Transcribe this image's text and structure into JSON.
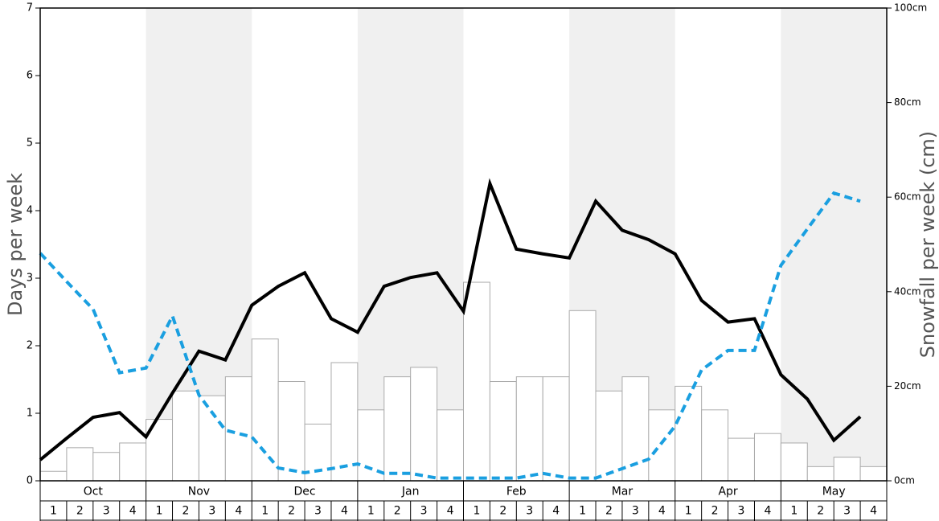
{
  "chart_data": {
    "type": "bar-line",
    "ylabel": "Days per week",
    "y2label": "Snowfall per week (cm)",
    "months": [
      "Oct",
      "Nov",
      "Dec",
      "Jan",
      "Feb",
      "Mar",
      "Apr",
      "May"
    ],
    "shaded_months": [
      1,
      3,
      5,
      7
    ],
    "categories": [
      "1",
      "2",
      "3",
      "4",
      "1",
      "2",
      "3",
      "4",
      "1",
      "2",
      "3",
      "4",
      "1",
      "2",
      "3",
      "4",
      "1",
      "2",
      "3",
      "4",
      "1",
      "2",
      "3",
      "4",
      "1",
      "2",
      "3",
      "4",
      "1",
      "2",
      "3",
      "4"
    ],
    "ylim": [
      0,
      7
    ],
    "yticks": [
      0,
      1,
      2,
      3,
      4,
      5,
      6,
      7
    ],
    "y2lim": [
      0,
      100
    ],
    "y2ticks": [
      {
        "value": 0,
        "label": "0cm"
      },
      {
        "value": 20,
        "label": "20cm"
      },
      {
        "value": 40,
        "label": "40cm"
      },
      {
        "value": 60,
        "label": "60cm"
      },
      {
        "value": 80,
        "label": "80cm"
      },
      {
        "value": 100,
        "label": "100cm"
      }
    ],
    "series": [
      {
        "kind": "bar",
        "axis": "y2",
        "color": "#ffffff",
        "values": [
          2,
          7,
          6,
          8,
          13,
          19,
          18,
          22,
          30,
          21,
          12,
          25,
          15,
          22,
          24,
          15,
          42,
          21,
          22,
          22,
          36,
          19,
          22,
          15,
          20,
          15,
          9,
          10,
          8,
          3,
          5,
          3
        ]
      },
      {
        "kind": "line",
        "axis": "y",
        "color": "#000000",
        "dashed": false,
        "values": [
          0.31,
          0.63,
          0.94,
          1.01,
          0.65,
          1.3,
          1.92,
          1.79,
          2.6,
          2.88,
          3.08,
          2.4,
          2.2,
          2.88,
          3.01,
          3.08,
          2.51,
          4.4,
          3.43,
          3.36,
          3.3,
          4.14,
          3.71,
          3.57,
          3.36,
          2.67,
          2.35,
          2.4,
          1.57,
          1.21,
          0.6,
          0.95
        ]
      },
      {
        "kind": "line",
        "axis": "y",
        "color": "#1a9fe0",
        "dashed": true,
        "values": [
          3.37,
          2.95,
          2.54,
          1.6,
          1.67,
          2.44,
          1.27,
          0.75,
          0.65,
          0.19,
          0.12,
          0.18,
          0.25,
          0.11,
          0.11,
          0.04,
          0.04,
          0.04,
          0.04,
          0.11,
          0.04,
          0.04,
          0.18,
          0.32,
          0.81,
          1.64,
          1.93,
          1.93,
          3.19,
          3.73,
          4.26,
          4.14
        ]
      }
    ]
  }
}
